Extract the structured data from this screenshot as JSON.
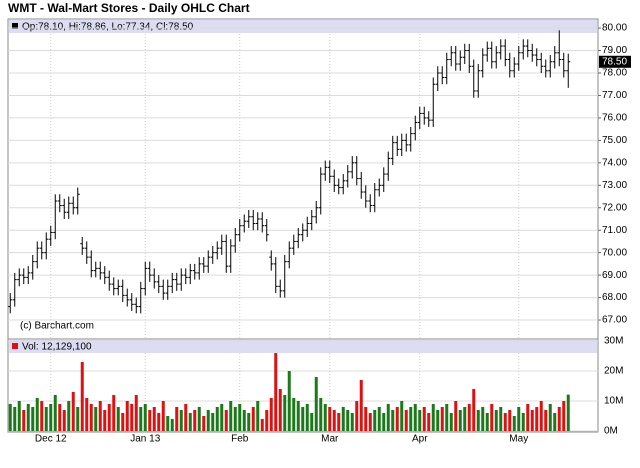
{
  "chart_data": {
    "type": "ohlc",
    "title": "WMT - Wal-Mart Stores - Daily OHLC Chart",
    "ohlc_legend": "Op:78.10, Hi:78.86, Lo:77.34, Cl:78.50",
    "volume_legend": "Vol: 12,129,100",
    "copyright": "(c) Barchart.com",
    "last_label": "78.50",
    "categories": [
      null,
      null,
      null,
      null,
      null,
      null,
      null,
      null,
      null,
      "Dec 12",
      null,
      null,
      null,
      null,
      null,
      null,
      null,
      null,
      null,
      null,
      null,
      null,
      null,
      null,
      null,
      null,
      null,
      null,
      null,
      null,
      "Jan 13",
      null,
      null,
      null,
      null,
      null,
      null,
      null,
      null,
      null,
      null,
      null,
      null,
      null,
      null,
      null,
      null,
      null,
      null,
      null,
      null,
      "Feb",
      null,
      null,
      null,
      null,
      null,
      null,
      null,
      null,
      null,
      null,
      null,
      null,
      null,
      null,
      null,
      null,
      null,
      null,
      null,
      "Mar",
      null,
      null,
      null,
      null,
      null,
      null,
      null,
      null,
      null,
      null,
      null,
      null,
      null,
      null,
      null,
      null,
      null,
      null,
      null,
      "Apr",
      null,
      null,
      null,
      null,
      null,
      null,
      null,
      null,
      null,
      null,
      null,
      null,
      null,
      null,
      null,
      null,
      null,
      null,
      null,
      null,
      null,
      "May",
      null,
      null,
      null,
      null,
      null,
      null,
      null,
      null,
      null,
      null,
      null
    ],
    "open": [
      67.6,
      67.9,
      68.8,
      69.0,
      68.9,
      69.1,
      69.6,
      70.2,
      70.0,
      70.6,
      70.9,
      72.3,
      72.1,
      71.8,
      72.2,
      72.0,
      70.4,
      70.2,
      69.8,
      69.2,
      69.3,
      69.1,
      68.9,
      68.6,
      68.4,
      68.5,
      68.1,
      67.9,
      67.7,
      67.6,
      68.4,
      69.3,
      69.0,
      68.7,
      68.5,
      68.2,
      68.5,
      68.8,
      68.6,
      69.0,
      68.9,
      69.2,
      69.1,
      69.5,
      69.4,
      69.8,
      70.0,
      70.2,
      70.5,
      69.4,
      70.3,
      70.8,
      71.2,
      71.4,
      71.6,
      71.3,
      71.5,
      71.2,
      69.8,
      69.5,
      68.5,
      68.3,
      69.6,
      70.2,
      70.5,
      70.8,
      71.0,
      71.3,
      71.6,
      72.0,
      73.5,
      73.8,
      73.4,
      73.0,
      72.9,
      73.2,
      73.6,
      74.0,
      73.3,
      72.7,
      72.3,
      72.1,
      72.8,
      73.0,
      73.5,
      74.2,
      74.9,
      74.6,
      75.0,
      74.8,
      75.3,
      75.8,
      76.2,
      76.0,
      75.9,
      77.5,
      78.0,
      77.8,
      78.6,
      78.9,
      78.4,
      78.7,
      79.0,
      78.3,
      77.2,
      78.1,
      78.8,
      79.1,
      78.5,
      78.9,
      79.2,
      78.6,
      78.1,
      78.4,
      78.9,
      79.2,
      79.0,
      78.8,
      78.6,
      78.3,
      78.1,
      78.5,
      78.9,
      78.6,
      78.1
    ],
    "high": [
      68.2,
      69.1,
      69.3,
      69.3,
      69.4,
      69.9,
      70.5,
      70.5,
      70.9,
      71.2,
      72.6,
      72.6,
      72.4,
      72.5,
      72.5,
      72.9,
      70.7,
      70.5,
      70.1,
      69.6,
      69.6,
      69.4,
      69.2,
      68.9,
      68.8,
      68.8,
      68.4,
      68.2,
      68.0,
      68.7,
      69.6,
      69.6,
      69.3,
      69.0,
      68.8,
      68.8,
      69.1,
      69.1,
      69.3,
      69.3,
      69.5,
      69.5,
      69.8,
      69.8,
      70.1,
      70.3,
      70.5,
      70.8,
      70.8,
      70.6,
      71.1,
      71.5,
      71.7,
      71.9,
      71.9,
      71.8,
      71.8,
      71.5,
      70.1,
      69.8,
      68.8,
      69.9,
      70.5,
      70.8,
      71.1,
      71.3,
      71.6,
      71.9,
      72.3,
      73.8,
      74.1,
      74.1,
      73.7,
      73.3,
      73.5,
      73.9,
      74.3,
      74.3,
      73.6,
      73.0,
      72.6,
      73.1,
      73.3,
      73.8,
      74.5,
      75.2,
      75.2,
      75.3,
      75.3,
      75.6,
      76.1,
      76.5,
      76.5,
      76.3,
      77.8,
      78.3,
      78.3,
      78.9,
      79.2,
      79.2,
      79.0,
      79.3,
      79.3,
      78.6,
      78.4,
      79.1,
      79.4,
      79.4,
      79.2,
      79.5,
      79.5,
      78.9,
      78.7,
      79.2,
      79.5,
      79.5,
      79.3,
      79.1,
      78.9,
      78.6,
      78.8,
      79.2,
      79.9,
      78.9,
      78.86
    ],
    "low": [
      67.3,
      67.6,
      68.5,
      68.6,
      68.6,
      68.8,
      69.3,
      69.7,
      69.7,
      70.3,
      70.6,
      71.8,
      71.5,
      71.5,
      71.7,
      71.7,
      69.9,
      69.5,
      68.9,
      68.9,
      68.8,
      68.6,
      68.3,
      68.1,
      68.1,
      67.8,
      67.6,
      67.4,
      67.3,
      67.3,
      68.1,
      68.7,
      68.4,
      68.2,
      67.9,
      67.9,
      68.2,
      68.3,
      68.3,
      68.6,
      68.6,
      68.8,
      68.8,
      69.1,
      69.1,
      69.5,
      69.7,
      69.9,
      69.1,
      69.1,
      70.0,
      70.5,
      70.9,
      71.1,
      71.0,
      71.0,
      70.9,
      70.5,
      69.2,
      68.2,
      68.0,
      68.0,
      69.3,
      69.9,
      70.2,
      70.5,
      70.7,
      71.0,
      71.3,
      71.7,
      73.2,
      73.1,
      72.7,
      72.6,
      72.6,
      72.9,
      73.3,
      73.0,
      72.4,
      72.0,
      71.8,
      71.8,
      72.5,
      72.7,
      73.2,
      73.9,
      74.3,
      74.3,
      74.5,
      74.5,
      75.0,
      75.5,
      75.7,
      75.6,
      75.6,
      77.2,
      77.5,
      77.5,
      78.3,
      78.1,
      78.1,
      78.4,
      78.0,
      76.9,
      76.9,
      77.8,
      78.5,
      78.2,
      78.2,
      78.6,
      78.3,
      77.8,
      77.8,
      78.1,
      78.6,
      78.7,
      78.5,
      78.3,
      78.0,
      77.8,
      77.8,
      78.2,
      78.3,
      77.8,
      77.34
    ],
    "close": [
      67.9,
      68.8,
      69.0,
      68.9,
      69.1,
      69.6,
      70.2,
      70.0,
      70.6,
      70.9,
      72.3,
      72.1,
      71.8,
      72.2,
      72.0,
      72.6,
      70.2,
      69.8,
      69.2,
      69.3,
      69.1,
      68.9,
      68.6,
      68.4,
      68.5,
      68.1,
      67.9,
      67.7,
      67.6,
      68.4,
      69.3,
      69.0,
      68.7,
      68.5,
      68.2,
      68.5,
      68.8,
      68.6,
      69.0,
      68.9,
      69.2,
      69.1,
      69.5,
      69.4,
      69.8,
      70.0,
      70.2,
      70.5,
      69.4,
      70.3,
      70.8,
      71.2,
      71.4,
      71.6,
      71.3,
      71.5,
      71.2,
      70.8,
      69.5,
      68.5,
      68.3,
      69.6,
      70.2,
      70.5,
      70.8,
      71.0,
      71.3,
      71.6,
      72.0,
      73.5,
      73.8,
      73.4,
      73.0,
      72.9,
      73.2,
      73.6,
      74.0,
      73.3,
      72.7,
      72.3,
      72.1,
      72.8,
      73.0,
      73.5,
      74.2,
      74.9,
      74.6,
      75.0,
      74.8,
      75.3,
      75.8,
      76.2,
      76.0,
      75.9,
      77.5,
      78.0,
      77.8,
      78.6,
      78.9,
      78.4,
      78.7,
      79.0,
      78.3,
      77.2,
      78.1,
      78.8,
      79.1,
      78.5,
      78.9,
      79.2,
      78.6,
      78.1,
      78.4,
      78.9,
      79.2,
      79.0,
      78.8,
      78.6,
      78.3,
      78.1,
      78.5,
      78.9,
      78.6,
      78.1,
      78.5
    ],
    "volume": [
      9000000,
      8000000,
      10000000,
      7000000,
      9000000,
      8000000,
      11000000,
      10000000,
      8000000,
      9000000,
      12000000,
      9000000,
      7000000,
      10000000,
      13000000,
      8000000,
      23000000,
      11000000,
      9000000,
      8000000,
      10000000,
      7000000,
      9000000,
      12000000,
      8000000,
      6000000,
      10000000,
      9000000,
      12000000,
      8000000,
      9000000,
      7000000,
      8000000,
      6000000,
      10000000,
      5000000,
      4000000,
      8000000,
      7000000,
      9000000,
      6000000,
      7000000,
      8000000,
      5000000,
      7000000,
      6000000,
      8000000,
      9000000,
      7000000,
      10000000,
      8000000,
      9000000,
      7000000,
      6000000,
      8000000,
      10000000,
      4000000,
      7000000,
      11000000,
      26000000,
      14000000,
      12000000,
      20000000,
      11000000,
      10000000,
      8000000,
      9000000,
      6000000,
      18000000,
      11000000,
      9000000,
      8000000,
      7000000,
      6000000,
      8000000,
      7000000,
      6000000,
      10000000,
      17000000,
      8000000,
      6000000,
      7000000,
      8000000,
      6000000,
      9000000,
      7000000,
      8000000,
      10000000,
      7000000,
      8000000,
      9000000,
      7000000,
      8000000,
      6000000,
      9000000,
      7000000,
      8000000,
      9000000,
      6000000,
      10000000,
      7000000,
      8000000,
      9000000,
      14000000,
      7000000,
      8000000,
      6000000,
      9000000,
      7000000,
      8000000,
      6000000,
      7000000,
      5000000,
      8000000,
      6000000,
      9000000,
      7000000,
      8000000,
      10000000,
      7000000,
      9000000,
      6000000,
      8000000,
      10000000,
      12129100
    ],
    "ylim": [
      66.2,
      80.36
    ],
    "yticks": [
      {
        "value": 67,
        "label": "67.00"
      },
      {
        "value": 68,
        "label": "68.00"
      },
      {
        "value": 69,
        "label": "69.00"
      },
      {
        "value": 70,
        "label": "70.00"
      },
      {
        "value": 71,
        "label": "71.00"
      },
      {
        "value": 72,
        "label": "72.00"
      },
      {
        "value": 73,
        "label": "73.00"
      },
      {
        "value": 74,
        "label": "74.00"
      },
      {
        "value": 75,
        "label": "75.00"
      },
      {
        "value": 76,
        "label": "76.00"
      },
      {
        "value": 77,
        "label": "77.00"
      },
      {
        "value": 78,
        "label": "78.00"
      },
      {
        "value": 79,
        "label": "79.00"
      },
      {
        "value": 80,
        "label": "80.00"
      }
    ],
    "volume_ylim": [
      0,
      30000000
    ],
    "volume_yticks": [
      {
        "value": 0,
        "label": "0M"
      },
      {
        "value": 10000000,
        "label": "10M"
      },
      {
        "value": 20000000,
        "label": "20M"
      },
      {
        "value": 30000000,
        "label": "30M"
      }
    ],
    "bar_color": "#000000",
    "up_color": "#1a7a1a",
    "down_color": "#dd1111",
    "grid": true
  }
}
